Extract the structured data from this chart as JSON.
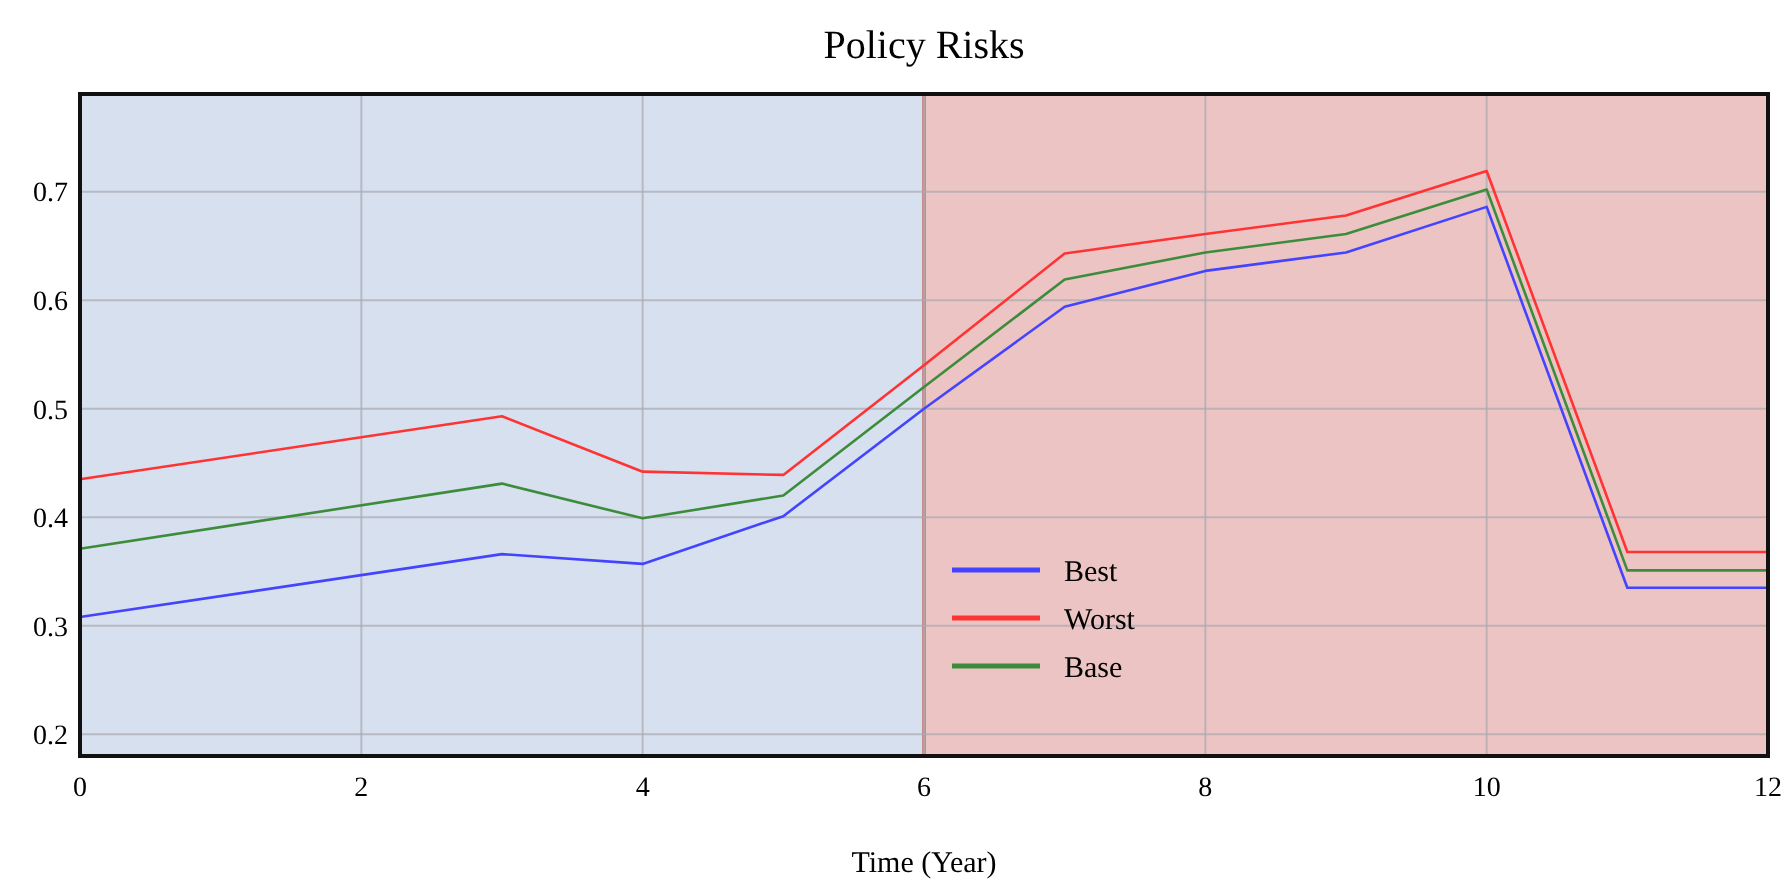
{
  "chart_data": {
    "type": "line",
    "title": "Policy Risks",
    "xlabel": "Time (Year)",
    "x": [
      0,
      3,
      4,
      5,
      6,
      7,
      8,
      9,
      10,
      11,
      12
    ],
    "series": [
      {
        "name": "Best",
        "color": "#4444ff",
        "values": [
          0.308,
          0.366,
          0.357,
          0.401,
          0.5,
          0.594,
          0.627,
          0.644,
          0.686,
          0.335,
          0.335
        ]
      },
      {
        "name": "Worst",
        "color": "#ff3333",
        "values": [
          0.435,
          0.493,
          0.442,
          0.439,
          0.54,
          0.643,
          0.661,
          0.678,
          0.719,
          0.368,
          0.368
        ]
      },
      {
        "name": "Base",
        "color": "#3c8c3c",
        "values": [
          0.371,
          0.431,
          0.399,
          0.42,
          0.52,
          0.619,
          0.644,
          0.661,
          0.702,
          0.351,
          0.351
        ]
      }
    ],
    "bands": [
      {
        "axis": "x",
        "from": 0,
        "to": 6,
        "color": "#d6e0ee"
      },
      {
        "axis": "x",
        "from": 6,
        "to": 12,
        "color": "#edc4c4"
      }
    ],
    "ref_lines": [
      {
        "axis": "x",
        "value": 6,
        "color": "#c88a8a"
      }
    ],
    "xlim": [
      0,
      12
    ],
    "xticks": [
      0,
      2,
      4,
      6,
      8,
      10,
      12
    ],
    "ylim": [
      0.18,
      0.79
    ],
    "yticks": [
      0.2,
      0.3,
      0.4,
      0.5,
      0.6,
      0.7
    ],
    "grid": true,
    "legend": "bottom",
    "line_style": "solid",
    "marker": "none"
  }
}
